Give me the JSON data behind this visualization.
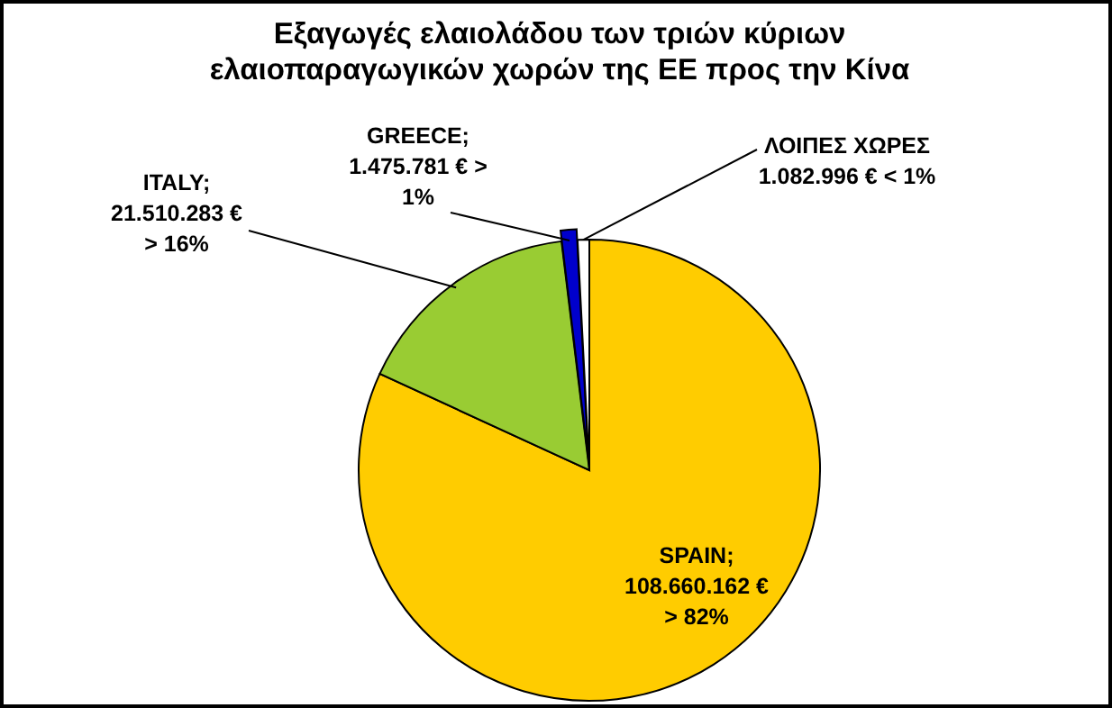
{
  "chart_data": {
    "type": "pie",
    "title": "Εξαγωγές ελαιολάδου των τριών κύριων\nελαιοπαραγωγικών χωρών της ΕΕ προς την Κίνα",
    "categories": [
      "SPAIN",
      "ITALY",
      "GREECE",
      "ΛΟΙΠΕΣ ΧΩΡΕΣ"
    ],
    "values": [
      108660162,
      21510283,
      1475781,
      1082996
    ],
    "colors": [
      "#ffcc00",
      "#99cc33",
      "#0000cc",
      "#ffffff"
    ],
    "value_labels": [
      ";\n108.660.162 €\n> 82%",
      ";\n21.510.283 €\n> 16%",
      ";\n1.475.781 €  >\n1%",
      "\n1.082.996 € < 1%"
    ]
  }
}
